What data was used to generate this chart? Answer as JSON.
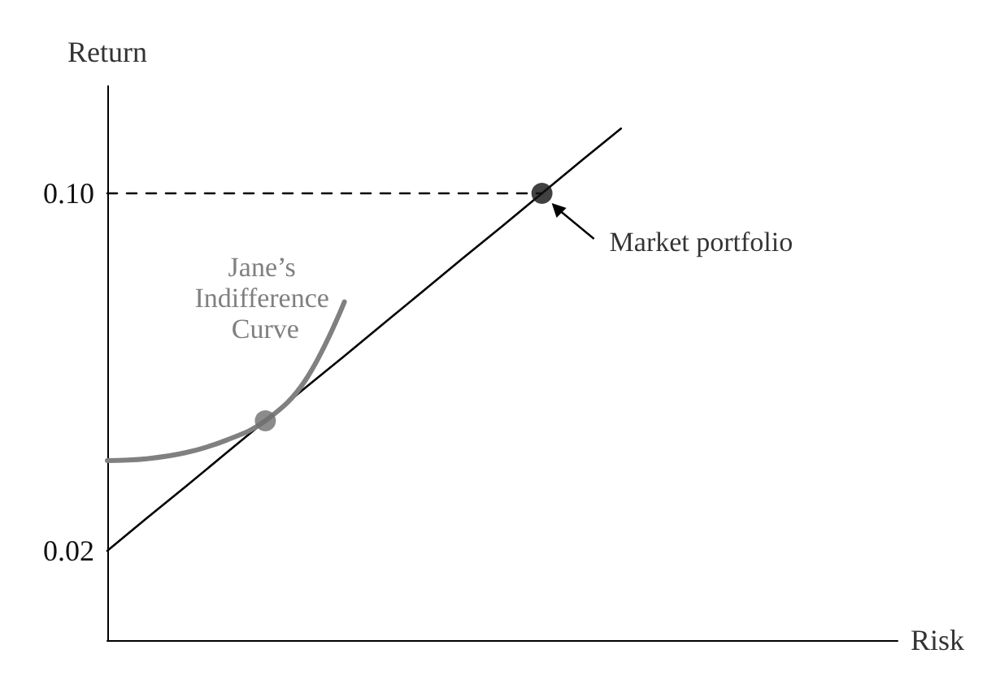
{
  "chart_data": {
    "type": "line",
    "xlabel": "Risk",
    "ylabel": "Return",
    "categories": [
      null,
      null,
      null,
      null,
      null,
      null,
      null,
      null,
      null,
      null,
      null,
      null,
      null,
      null,
      null,
      null,
      null,
      null,
      null,
      null,
      null
    ],
    "ylim": [
      0,
      0.124
    ],
    "yticks": [
      0.02,
      {
        "value": 0.1,
        "label": "0.10"
      }
    ],
    "tick_labels": "y",
    "grid": false,
    "legend": false,
    "series": [
      {
        "color": "#000000",
        "marker": "none",
        "line_style": "solid",
        "values": [
          0.02,
          0.0273,
          0.0345,
          0.0418,
          0.0491,
          0.0564,
          0.0636,
          0.0709,
          0.0782,
          0.0855,
          0.0927,
          0.1,
          0.1073,
          0.1145,
          null,
          null,
          null,
          null,
          null,
          null,
          null
        ]
      },
      {
        "color": "#000000",
        "marker": "none",
        "line_style": "dashed",
        "values": [
          0.1,
          0.1,
          0.1,
          0.1,
          0.1,
          0.1,
          0.1,
          0.1,
          0.1,
          0.1,
          0.1,
          0.1,
          null,
          null,
          null,
          null,
          null,
          null,
          null,
          null,
          null
        ]
      },
      {
        "name": "Jane’s Indifference Curve",
        "color": "#808080",
        "marker": "none",
        "line_style": "solid",
        "values": [
          0.0402,
          0.0406,
          0.042,
          0.0447,
          0.0491,
          0.058,
          0.0757,
          null,
          null,
          null,
          null,
          null,
          null,
          null,
          null,
          null,
          null,
          null,
          null,
          null,
          null
        ]
      },
      {
        "type": "scatter",
        "color": "#6e6e6e",
        "marker": "circle",
        "values": [
          null,
          null,
          null,
          null,
          0.0491,
          null,
          null,
          null,
          null,
          null,
          null,
          null,
          null,
          null,
          null,
          null,
          null,
          null,
          null,
          null,
          null
        ]
      },
      {
        "type": "scatter",
        "name": "Market portfolio",
        "color": "#111111",
        "marker": "circle",
        "values": [
          null,
          null,
          null,
          null,
          null,
          null,
          null,
          null,
          null,
          null,
          null,
          0.1,
          null,
          null,
          null,
          null,
          null,
          null,
          null,
          null,
          null
        ]
      }
    ]
  }
}
